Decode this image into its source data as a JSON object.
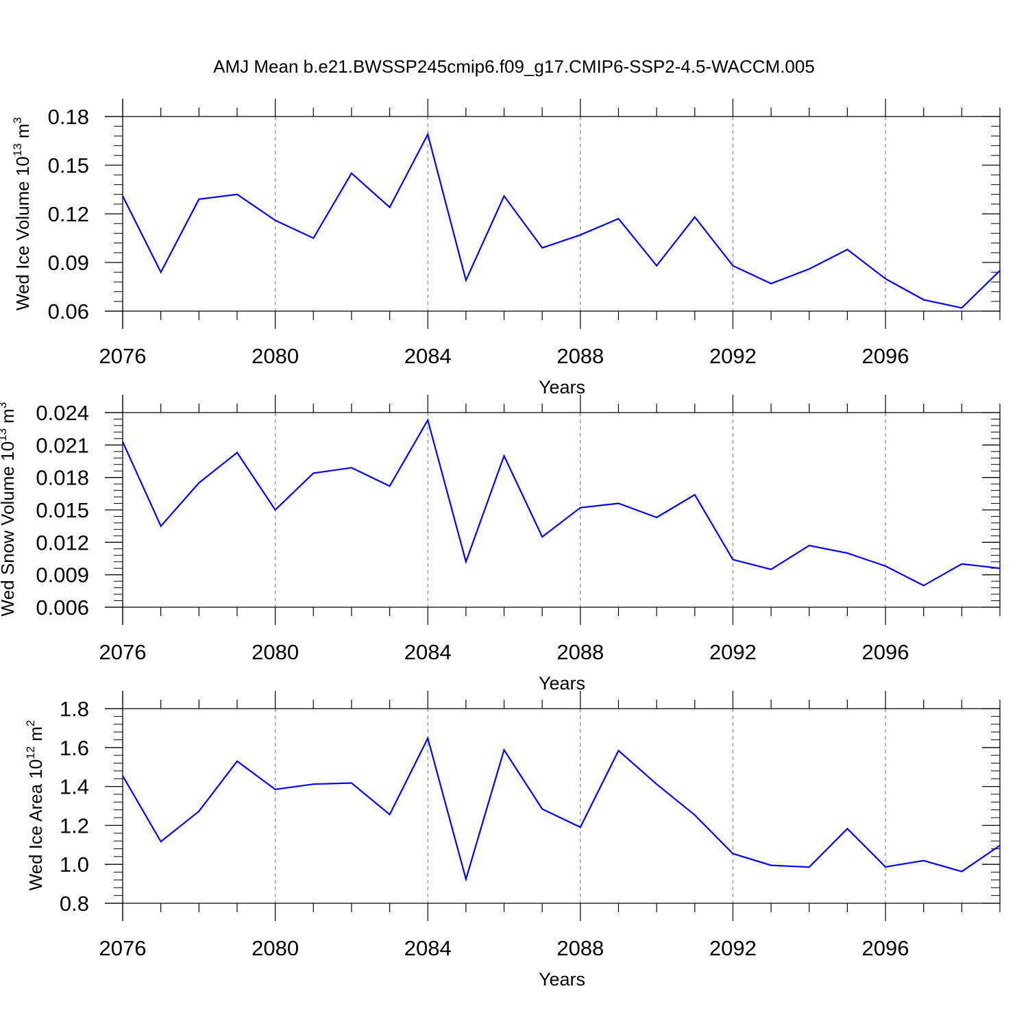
{
  "title": "AMJ Mean b.e21.BWSSP245cmip6.f09_g17.CMIP6-SSP2-4.5-WACCM.005",
  "colors": {
    "line": "#0000ff",
    "axis": "#000000",
    "grid": "#888888"
  },
  "chart_data": [
    {
      "type": "line",
      "ylabel_main": "Wed Ice Volume 10",
      "ylabel_exp": "13",
      "ylabel_unit": " m",
      "ylabel_unit_exp": "3",
      "xlabel": "Years",
      "xlim": [
        2076,
        2099
      ],
      "ylim": [
        0.06,
        0.18
      ],
      "xticks": [
        2076,
        2080,
        2084,
        2088,
        2092,
        2096
      ],
      "xtick_labels": [
        "2076",
        "2080",
        "2084",
        "2088",
        "2092",
        "2096"
      ],
      "yticks": [
        0.06,
        0.09,
        0.12,
        0.15,
        0.18
      ],
      "ytick_labels": [
        "0.06",
        "0.09",
        "0.12",
        "0.15",
        "0.18"
      ],
      "series": [
        {
          "name": "Wed Ice Volume",
          "x": [
            2076,
            2077,
            2078,
            2079,
            2080,
            2081,
            2082,
            2083,
            2084,
            2085,
            2086,
            2087,
            2088,
            2089,
            2090,
            2091,
            2092,
            2093,
            2094,
            2095,
            2096,
            2097,
            2098,
            2099
          ],
          "values": [
            0.131,
            0.084,
            0.129,
            0.132,
            0.116,
            0.105,
            0.145,
            0.124,
            0.169,
            0.079,
            0.131,
            0.099,
            0.107,
            0.117,
            0.088,
            0.118,
            0.088,
            0.077,
            0.086,
            0.098,
            0.08,
            0.067,
            0.062,
            0.085
          ]
        }
      ]
    },
    {
      "type": "line",
      "ylabel_main": "Wed Snow Volume 10",
      "ylabel_exp": "13",
      "ylabel_unit": " m",
      "ylabel_unit_exp": "3",
      "xlabel": "Years",
      "xlim": [
        2076,
        2099
      ],
      "ylim": [
        0.006,
        0.024
      ],
      "xticks": [
        2076,
        2080,
        2084,
        2088,
        2092,
        2096
      ],
      "xtick_labels": [
        "2076",
        "2080",
        "2084",
        "2088",
        "2092",
        "2096"
      ],
      "yticks": [
        0.006,
        0.009,
        0.012,
        0.015,
        0.018,
        0.021,
        0.024
      ],
      "ytick_labels": [
        "0.006",
        "0.009",
        "0.012",
        "0.015",
        "0.018",
        "0.021",
        "0.024"
      ],
      "series": [
        {
          "name": "Wed Snow Volume",
          "x": [
            2076,
            2077,
            2078,
            2079,
            2080,
            2081,
            2082,
            2083,
            2084,
            2085,
            2086,
            2087,
            2088,
            2089,
            2090,
            2091,
            2092,
            2093,
            2094,
            2095,
            2096,
            2097,
            2098,
            2099
          ],
          "values": [
            0.0213,
            0.0135,
            0.0175,
            0.0203,
            0.015,
            0.0184,
            0.0189,
            0.0172,
            0.0233,
            0.0102,
            0.02,
            0.0125,
            0.0152,
            0.0156,
            0.0143,
            0.0164,
            0.0104,
            0.0095,
            0.0117,
            0.011,
            0.0098,
            0.008,
            0.01,
            0.0096
          ]
        }
      ]
    },
    {
      "type": "line",
      "ylabel_main": "Wed Ice Area 10",
      "ylabel_exp": "12",
      "ylabel_unit": " m",
      "ylabel_unit_exp": "2",
      "xlabel": "Years",
      "xlim": [
        2076,
        2099
      ],
      "ylim": [
        0.8,
        1.8
      ],
      "xticks": [
        2076,
        2080,
        2084,
        2088,
        2092,
        2096
      ],
      "xtick_labels": [
        "2076",
        "2080",
        "2084",
        "2088",
        "2092",
        "2096"
      ],
      "yticks": [
        0.8,
        1.0,
        1.2,
        1.4,
        1.6,
        1.8
      ],
      "ytick_labels": [
        "0.8",
        "1.0",
        "1.2",
        "1.4",
        "1.6",
        "1.8"
      ],
      "series": [
        {
          "name": "Wed Ice Area",
          "x": [
            2076,
            2077,
            2078,
            2079,
            2080,
            2081,
            2082,
            2083,
            2084,
            2085,
            2086,
            2087,
            2088,
            2089,
            2090,
            2091,
            2092,
            2093,
            2094,
            2095,
            2096,
            2097,
            2098,
            2099
          ],
          "values": [
            1.455,
            1.117,
            1.273,
            1.53,
            1.385,
            1.412,
            1.418,
            1.256,
            1.648,
            0.924,
            1.588,
            1.284,
            1.191,
            1.584,
            1.412,
            1.253,
            1.055,
            0.995,
            0.986,
            1.183,
            0.987,
            1.019,
            0.963,
            1.097
          ]
        }
      ]
    }
  ]
}
